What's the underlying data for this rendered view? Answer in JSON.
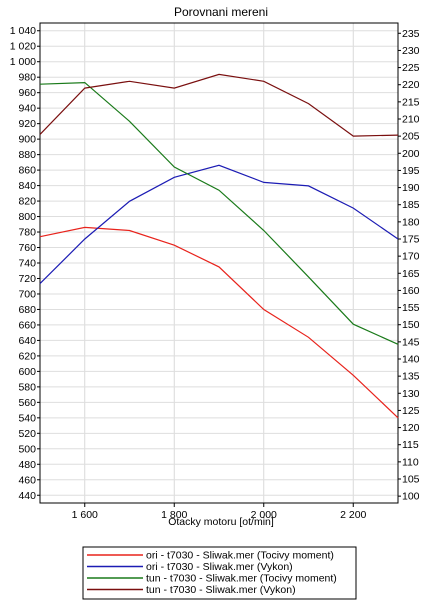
{
  "chart_data": {
    "type": "line",
    "title": "Porovnani mereni",
    "xlabel": "Otacky motoru [ot/min]",
    "ylabel_left": "",
    "ylabel_right": "",
    "xlim": [
      1500,
      2300
    ],
    "ylim_left": [
      430,
      1050
    ],
    "ylim_right": [
      98,
      238
    ],
    "x_ticks": [
      1600,
      1800,
      2000,
      2200
    ],
    "x_tick_labels": [
      "1 600",
      "1 800",
      "2 000",
      "2 200"
    ],
    "y_left_ticks": [
      440,
      460,
      480,
      500,
      520,
      540,
      560,
      580,
      600,
      620,
      640,
      660,
      680,
      700,
      720,
      740,
      760,
      780,
      800,
      820,
      840,
      860,
      880,
      900,
      920,
      940,
      960,
      980,
      1000,
      1020,
      1040
    ],
    "y_left_tick_labels": [
      "440",
      "460",
      "480",
      "500",
      "520",
      "540",
      "560",
      "580",
      "600",
      "620",
      "640",
      "660",
      "680",
      "700",
      "720",
      "740",
      "760",
      "780",
      "800",
      "820",
      "840",
      "860",
      "880",
      "900",
      "920",
      "940",
      "960",
      "980",
      "1 000",
      "1 020",
      "1 040"
    ],
    "y_right_ticks": [
      100,
      105,
      110,
      115,
      120,
      125,
      130,
      135,
      140,
      145,
      150,
      155,
      160,
      165,
      170,
      175,
      180,
      185,
      190,
      195,
      200,
      205,
      210,
      215,
      220,
      225,
      230,
      235
    ],
    "grid": true,
    "legend_position": "bottom",
    "series": [
      {
        "name": "ori - t7030 - Sliwak.mer  (Tocivy moment)",
        "axis": "left",
        "color": "#e8231c",
        "x": [
          1500,
          1600,
          1700,
          1800,
          1900,
          2000,
          2100,
          2200,
          2300
        ],
        "values": [
          774,
          786,
          782,
          763,
          735,
          680,
          644,
          595,
          540
        ]
      },
      {
        "name": "ori - t7030 - Sliwak.mer  (Vykon)",
        "axis": "right",
        "color": "#1c1cb4",
        "x": [
          1500,
          1600,
          1700,
          1800,
          1900,
          2000,
          2100,
          2200,
          2300
        ],
        "values": [
          162,
          175,
          186,
          193,
          196.5,
          191.5,
          190.5,
          184,
          175
        ]
      },
      {
        "name": "tun - t7030 - Sliwak.mer  (Tocivy moment)",
        "axis": "left",
        "color": "#1a7a1a",
        "x": [
          1500,
          1600,
          1700,
          1800,
          1900,
          2000,
          2100,
          2200,
          2300
        ],
        "values": [
          971,
          973,
          923,
          864,
          834,
          782,
          722,
          661,
          635
        ]
      },
      {
        "name": "tun - t7030 - Sliwak.mer  (Vykon)",
        "axis": "right",
        "color": "#7a0f0f",
        "x": [
          1500,
          1600,
          1700,
          1800,
          1900,
          2000,
          2100,
          2200,
          2300
        ],
        "values": [
          205.5,
          219,
          221,
          219,
          223,
          221,
          214.5,
          205,
          205.3
        ]
      }
    ]
  }
}
